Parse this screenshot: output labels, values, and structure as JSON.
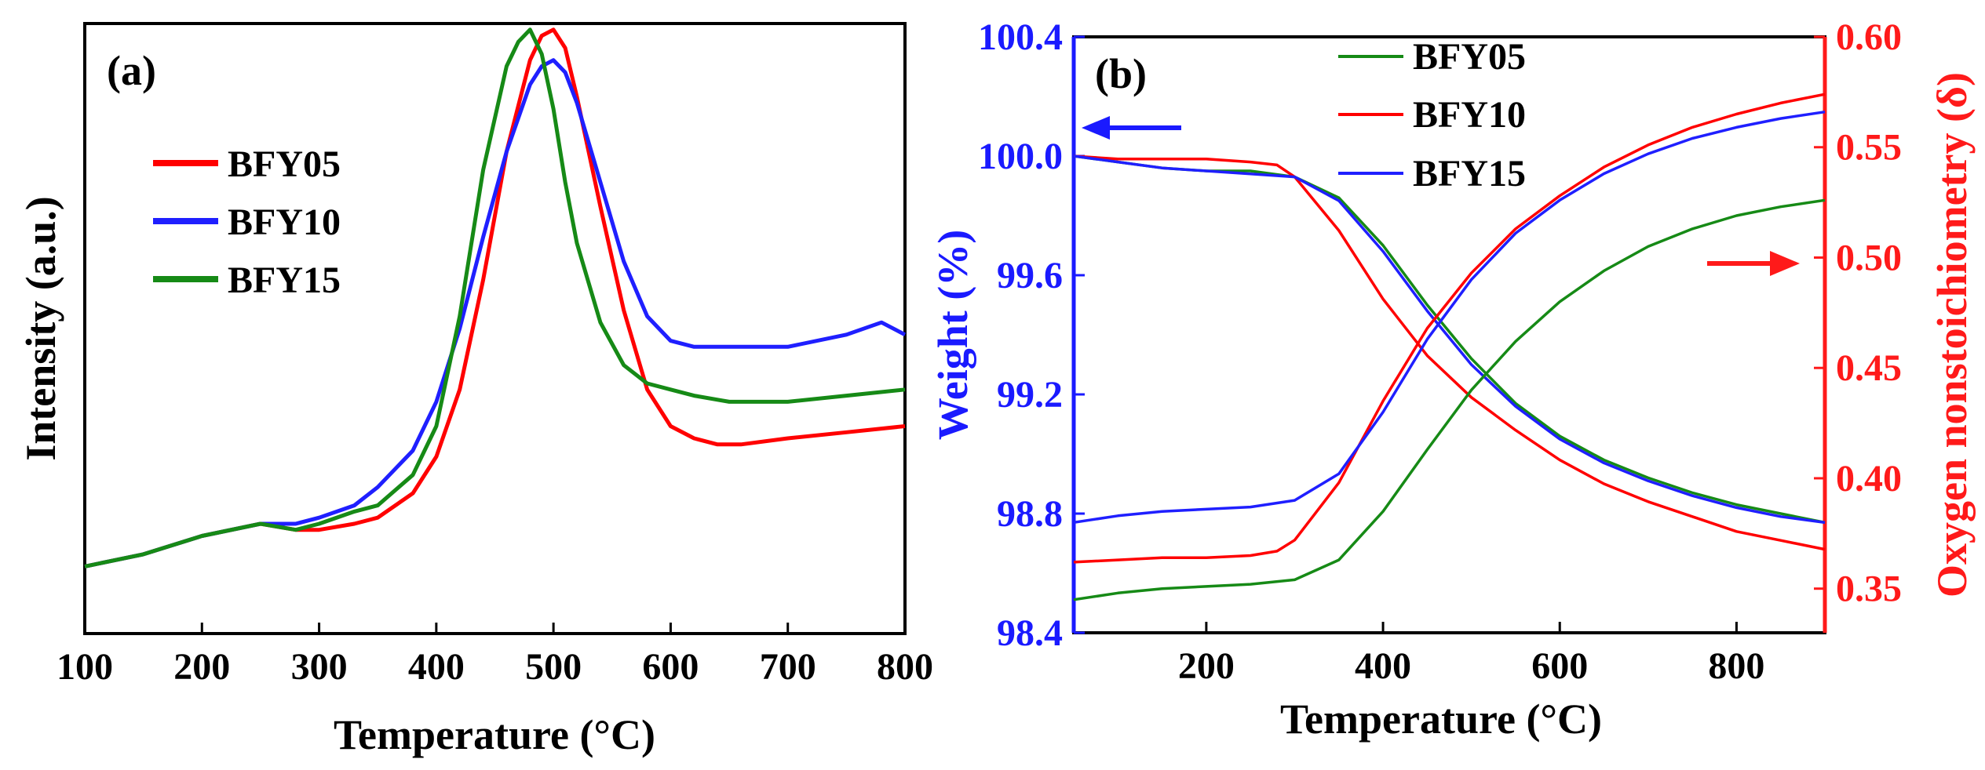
{
  "chart_data": [
    {
      "panel_label": "(a)",
      "type": "line",
      "title": "",
      "xlabel": "Temperature (°C)",
      "ylabel": "Intensity (a.u.)",
      "xlim": [
        100,
        800
      ],
      "ylim": [
        0,
        1
      ],
      "xticks": [
        "100",
        "200",
        "300",
        "400",
        "500",
        "600",
        "700",
        "800"
      ],
      "legend": [
        "BFY05",
        "BFY10",
        "BFY15"
      ],
      "colors": [
        "#ff0000",
        "#1f1fff",
        "#168a16"
      ],
      "series": [
        {
          "name": "BFY05",
          "color": "#ff0000",
          "x": [
            100,
            150,
            200,
            250,
            280,
            300,
            330,
            350,
            380,
            400,
            420,
            440,
            460,
            480,
            490,
            500,
            510,
            520,
            540,
            560,
            580,
            600,
            620,
            640,
            660,
            700,
            750,
            800
          ],
          "y": [
            0.11,
            0.13,
            0.16,
            0.18,
            0.17,
            0.17,
            0.18,
            0.19,
            0.23,
            0.29,
            0.4,
            0.58,
            0.79,
            0.94,
            0.98,
            0.99,
            0.96,
            0.88,
            0.7,
            0.53,
            0.4,
            0.34,
            0.32,
            0.31,
            0.31,
            0.32,
            0.33,
            0.34
          ]
        },
        {
          "name": "BFY10",
          "color": "#1f1fff",
          "x": [
            100,
            150,
            200,
            250,
            280,
            300,
            330,
            350,
            380,
            400,
            420,
            440,
            460,
            480,
            490,
            500,
            510,
            520,
            540,
            560,
            580,
            600,
            620,
            640,
            660,
            700,
            750,
            780,
            800
          ],
          "y": [
            0.11,
            0.13,
            0.16,
            0.18,
            0.18,
            0.19,
            0.21,
            0.24,
            0.3,
            0.38,
            0.5,
            0.65,
            0.79,
            0.9,
            0.93,
            0.94,
            0.92,
            0.87,
            0.74,
            0.61,
            0.52,
            0.48,
            0.47,
            0.47,
            0.47,
            0.47,
            0.49,
            0.51,
            0.49
          ]
        },
        {
          "name": "BFY15",
          "color": "#168a16",
          "x": [
            100,
            150,
            200,
            250,
            280,
            300,
            330,
            350,
            380,
            400,
            420,
            440,
            460,
            470,
            480,
            490,
            500,
            510,
            520,
            540,
            560,
            580,
            600,
            620,
            650,
            700,
            750,
            800
          ],
          "y": [
            0.11,
            0.13,
            0.16,
            0.18,
            0.17,
            0.18,
            0.2,
            0.21,
            0.26,
            0.34,
            0.52,
            0.76,
            0.93,
            0.97,
            0.99,
            0.95,
            0.86,
            0.74,
            0.64,
            0.51,
            0.44,
            0.41,
            0.4,
            0.39,
            0.38,
            0.38,
            0.39,
            0.4
          ]
        }
      ]
    },
    {
      "panel_label": "(b)",
      "type": "line",
      "title": "",
      "xlabel": "Temperature (°C)",
      "ylabel_left": "Weight (%)",
      "ylabel_right": "Oxygen nonstoichiometry (δ)",
      "xlim": [
        50,
        900
      ],
      "ylim_left": [
        98.4,
        100.4
      ],
      "ylim_right": [
        0.33,
        0.6
      ],
      "xticks": [
        "200",
        "400",
        "600",
        "800"
      ],
      "yticks_left": [
        "98.4",
        "98.8",
        "99.2",
        "99.6",
        "100.0",
        "100.4"
      ],
      "yticks_right": [
        "0.35",
        "0.40",
        "0.45",
        "0.50",
        "0.55",
        "0.60"
      ],
      "legend": [
        "BFY05",
        "BFY10",
        "BFY15"
      ],
      "legend_colors": [
        "#168a16",
        "#ff0000",
        "#1f1fff"
      ],
      "weight_series": [
        {
          "name": "BFY05",
          "color": "#168a16",
          "axis": "left",
          "x": [
            50,
            100,
            150,
            200,
            250,
            300,
            350,
            400,
            450,
            500,
            550,
            600,
            650,
            700,
            750,
            800,
            850,
            900
          ],
          "y": [
            100.0,
            99.98,
            99.96,
            99.95,
            99.95,
            99.93,
            99.86,
            99.7,
            99.5,
            99.32,
            99.17,
            99.06,
            98.98,
            98.92,
            98.87,
            98.83,
            98.8,
            98.77
          ]
        },
        {
          "name": "BFY10",
          "color": "#ff0000",
          "axis": "left",
          "x": [
            50,
            100,
            150,
            200,
            250,
            280,
            300,
            350,
            400,
            450,
            500,
            550,
            600,
            650,
            700,
            750,
            800,
            850,
            900
          ],
          "y": [
            100.0,
            99.99,
            99.99,
            99.99,
            99.98,
            99.97,
            99.93,
            99.75,
            99.52,
            99.33,
            99.19,
            99.08,
            98.98,
            98.9,
            98.84,
            98.79,
            98.74,
            98.71,
            98.68
          ]
        },
        {
          "name": "BFY15",
          "color": "#1f1fff",
          "axis": "left",
          "x": [
            50,
            100,
            150,
            200,
            250,
            300,
            350,
            400,
            450,
            500,
            550,
            600,
            650,
            700,
            750,
            800,
            850,
            900
          ],
          "y": [
            100.0,
            99.98,
            99.96,
            99.95,
            99.94,
            99.93,
            99.85,
            99.68,
            99.48,
            99.3,
            99.16,
            99.05,
            98.97,
            98.91,
            98.86,
            98.82,
            98.79,
            98.77
          ]
        }
      ],
      "delta_series": [
        {
          "name": "BFY05",
          "color": "#168a16",
          "axis": "right",
          "x": [
            50,
            100,
            150,
            200,
            250,
            300,
            350,
            400,
            450,
            500,
            550,
            600,
            650,
            700,
            750,
            800,
            850,
            900
          ],
          "y": [
            0.345,
            0.348,
            0.35,
            0.351,
            0.352,
            0.354,
            0.363,
            0.385,
            0.413,
            0.44,
            0.462,
            0.48,
            0.494,
            0.505,
            0.513,
            0.519,
            0.523,
            0.526
          ]
        },
        {
          "name": "BFY10",
          "color": "#ff0000",
          "axis": "right",
          "x": [
            50,
            100,
            150,
            200,
            250,
            280,
            300,
            350,
            400,
            450,
            500,
            550,
            600,
            650,
            700,
            750,
            800,
            850,
            900
          ],
          "y": [
            0.362,
            0.363,
            0.364,
            0.364,
            0.365,
            0.367,
            0.372,
            0.398,
            0.435,
            0.468,
            0.493,
            0.513,
            0.528,
            0.541,
            0.551,
            0.559,
            0.565,
            0.57,
            0.574
          ]
        },
        {
          "name": "BFY15",
          "color": "#1f1fff",
          "axis": "right",
          "x": [
            50,
            100,
            150,
            200,
            250,
            300,
            350,
            400,
            450,
            500,
            550,
            600,
            650,
            700,
            750,
            800,
            850,
            900
          ],
          "y": [
            0.38,
            0.383,
            0.385,
            0.386,
            0.387,
            0.39,
            0.402,
            0.43,
            0.463,
            0.49,
            0.511,
            0.526,
            0.538,
            0.547,
            0.554,
            0.559,
            0.563,
            0.566
          ]
        }
      ]
    }
  ]
}
